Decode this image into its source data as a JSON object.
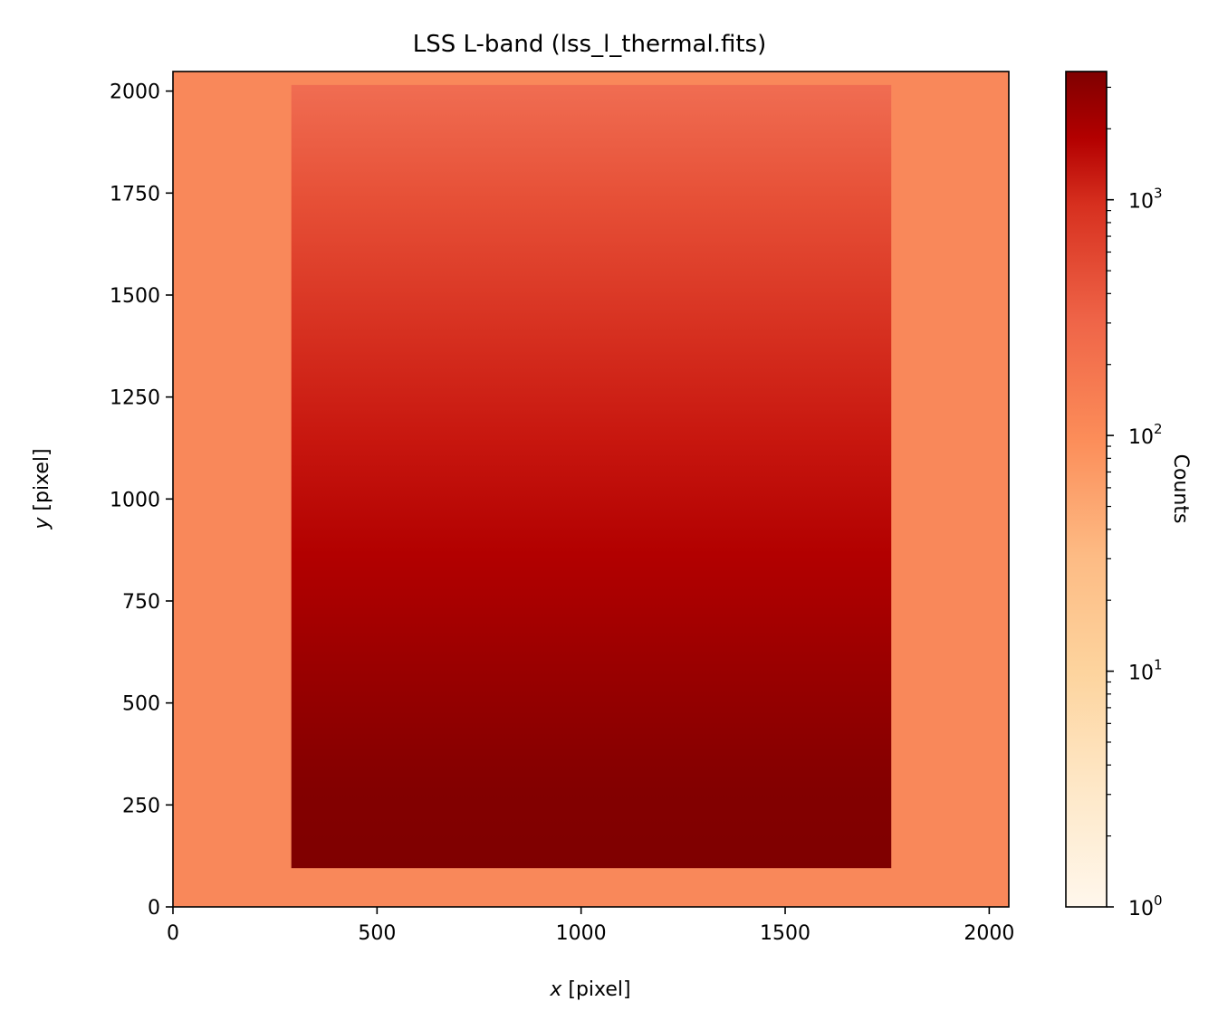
{
  "chart_data": {
    "type": "heatmap",
    "title": "LSS L-band (lss_l_thermal.fits)",
    "xlabel_var": "x",
    "xlabel_unit": " [pixel]",
    "ylabel_var": "y",
    "ylabel_unit": " [pixel]",
    "xlim": [
      0,
      2048
    ],
    "ylim": [
      0,
      2048
    ],
    "x_ticks": [
      0,
      500,
      1000,
      1500,
      2000
    ],
    "y_ticks": [
      0,
      250,
      500,
      750,
      1000,
      1250,
      1500,
      1750,
      2000
    ],
    "colorbar": {
      "label": "Counts",
      "scale": "log",
      "range": [
        1,
        3500
      ],
      "colormap": "OrRd",
      "ticks": [
        {
          "value": 1,
          "base": "10",
          "exp": "0"
        },
        {
          "value": 10,
          "base": "10",
          "exp": "1"
        },
        {
          "value": 100,
          "base": "10",
          "exp": "2"
        },
        {
          "value": 1000,
          "base": "10",
          "exp": "3"
        }
      ]
    },
    "background_level": 70,
    "illuminated_region": {
      "x_range": [
        290,
        1760
      ],
      "y_range": [
        95,
        2015
      ],
      "counts_at_bottom": 3500,
      "counts_at_middle": 1300,
      "counts_at_top": 100
    }
  }
}
